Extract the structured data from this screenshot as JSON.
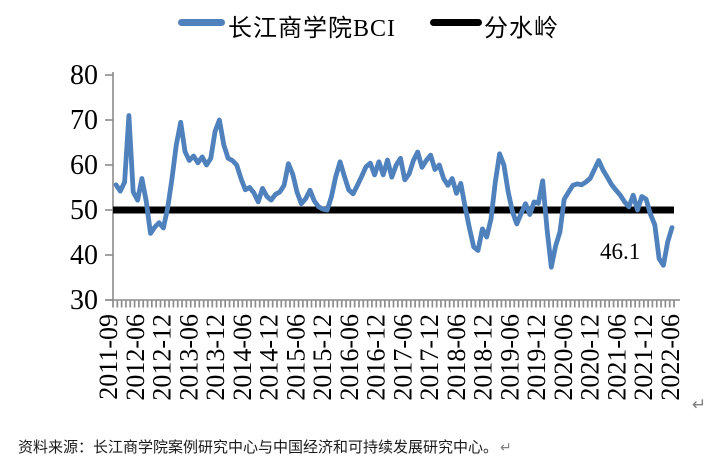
{
  "chart_data": {
    "type": "line",
    "legend": [
      {
        "label": "长江商学院BCI",
        "color": "#4F81BD"
      },
      {
        "label": "分水岭",
        "color": "#000000"
      }
    ],
    "y_ticks": [
      30,
      40,
      50,
      60,
      70,
      80
    ],
    "ylim": [
      30,
      80
    ],
    "x_tick_labels": [
      "2011-09",
      "2012-06",
      "2012-12",
      "2013-06",
      "2013-12",
      "2014-06",
      "2014-12",
      "2015-06",
      "2015-12",
      "2016-06",
      "2016-12",
      "2017-06",
      "2017-12",
      "2018-06",
      "2018-12",
      "2019-06",
      "2019-12",
      "2020-06",
      "2020-12",
      "2021-06",
      "2021-12",
      "2022-06"
    ],
    "x_frequency": "monthly",
    "x_range": [
      "2011-09",
      "2022-06"
    ],
    "grid": false,
    "legend_position": "top-center",
    "axis_color": "#8C8C8C",
    "series": [
      {
        "name": "长江商学院BCI",
        "color": "#4F81BD",
        "values": [
          55.6,
          54.2,
          56.2,
          71.0,
          54.0,
          52.2,
          57.0,
          52.0,
          44.8,
          46.2,
          47.2,
          46.0,
          50.5,
          57.0,
          64.5,
          69.5,
          63.0,
          61.0,
          62.0,
          60.5,
          61.8,
          60.0,
          61.5,
          67.5,
          70.0,
          64.5,
          61.5,
          61.0,
          60.0,
          57.0,
          54.5,
          55.0,
          53.8,
          51.8,
          54.8,
          53.0,
          52.2,
          53.5,
          54.0,
          55.5,
          60.3,
          58.0,
          54.0,
          51.4,
          52.5,
          54.4,
          52.0,
          50.7,
          50.2,
          50.0,
          53.0,
          57.5,
          60.7,
          57.5,
          54.5,
          53.6,
          55.5,
          57.5,
          59.6,
          60.4,
          57.8,
          60.7,
          57.8,
          61.1,
          57.3,
          60.0,
          61.5,
          56.7,
          58.0,
          61.0,
          62.9,
          59.5,
          61.0,
          62.2,
          59.0,
          60.0,
          57.0,
          55.5,
          57.0,
          53.7,
          55.9,
          50.7,
          46.0,
          41.8,
          41.0,
          45.8,
          44.0,
          48.0,
          56.2,
          62.5,
          60.0,
          54.0,
          49.6,
          46.9,
          49.2,
          51.4,
          49.0,
          51.8,
          51.5,
          56.5,
          45.8,
          37.3,
          42.0,
          45.1,
          52.4,
          54.0,
          55.5,
          55.8,
          55.6,
          56.2,
          57.0,
          59.0,
          61.0,
          58.9,
          57.3,
          55.6,
          54.4,
          53.3,
          51.8,
          50.7,
          53.3,
          50.0,
          53.0,
          52.4,
          49.1,
          46.7,
          39.2,
          37.7,
          42.9,
          46.1
        ]
      },
      {
        "name": "分水岭",
        "color": "#000000",
        "constant": 50
      }
    ],
    "annotation": {
      "text": "46.1",
      "applies_to": "2022-06"
    }
  },
  "footer": {
    "source_text": "资料来源：长江商学院案例研究中心与中国经济和可持续发展研究中心。",
    "paragraph_mark": "↵"
  }
}
